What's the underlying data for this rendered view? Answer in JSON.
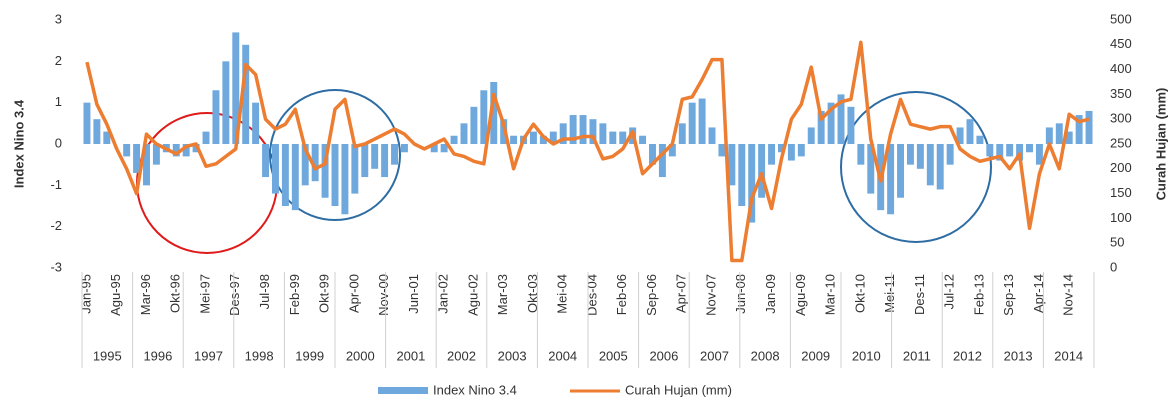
{
  "chart_data": {
    "type": "bar-line",
    "y_label": "Index Nino 3.4",
    "y2_label": "Curah Hujan (mm)",
    "categories": [
      "Jan-95",
      null,
      null,
      "Agu-95",
      null,
      null,
      "Mar-96",
      null,
      null,
      "Okt-96",
      null,
      null,
      "Mei-97",
      null,
      null,
      "Des-97",
      null,
      null,
      "Jul-98",
      null,
      null,
      "Feb-99",
      null,
      null,
      "Okt-99",
      null,
      null,
      "Apr-00",
      null,
      null,
      "Nov-00",
      null,
      null,
      "Jun-01",
      null,
      null,
      "Jan-02",
      null,
      null,
      "Agu-02",
      null,
      null,
      "Mar-03",
      null,
      null,
      "Okt-03",
      null,
      null,
      "Mei-04",
      null,
      null,
      "Des-04",
      null,
      null,
      "Feb-06",
      null,
      null,
      "Sep-06",
      null,
      null,
      "Apr-07",
      null,
      null,
      "Nov-07",
      null,
      null,
      "Jun-08",
      null,
      null,
      "Jan-09",
      null,
      null,
      "Agu-09",
      null,
      null,
      "Mar-10",
      null,
      null,
      "Okt-10",
      null,
      null,
      "Mei-11",
      null,
      null,
      "Des-11",
      null,
      null,
      "Jul-12",
      null,
      null,
      "Feb-13",
      null,
      null,
      "Sep-13",
      null,
      null,
      "Apr-14",
      null,
      null,
      "Nov-14",
      null,
      null
    ],
    "year_labels": [
      "1995",
      "1996",
      "1997",
      "1998",
      "1999",
      "2000",
      "2001",
      "2002",
      "2003",
      "2004",
      "2005",
      "2006",
      "2007",
      "2008",
      "2009",
      "2010",
      "2011",
      "2012",
      "2013",
      "2014"
    ],
    "series": [
      {
        "name": "Index Nino 3.4",
        "type": "bar",
        "color": "#6fa8dc",
        "values": [
          1.0,
          0.6,
          0.3,
          0,
          -0.3,
          -0.7,
          -1.0,
          -0.5,
          -0.2,
          -0.3,
          -0.3,
          -0.2,
          0.3,
          1.3,
          2.0,
          2.7,
          2.4,
          1.0,
          -0.8,
          -1.2,
          -1.5,
          -1.6,
          -1.0,
          -0.9,
          -1.3,
          -1.5,
          -1.7,
          -1.2,
          -0.8,
          -0.6,
          -0.8,
          -0.5,
          -0.2,
          0,
          0,
          -0.2,
          -0.2,
          0.2,
          0.5,
          0.9,
          1.3,
          1.5,
          0.6,
          0.2,
          0.2,
          0.3,
          0.2,
          0.3,
          0.5,
          0.7,
          0.7,
          0.6,
          0.5,
          0.3,
          0.3,
          0.4,
          0.2,
          -0.5,
          -0.8,
          -0.3,
          0.5,
          1.0,
          1.1,
          0.4,
          -0.3,
          -1.0,
          -1.5,
          -1.9,
          -1.3,
          -0.5,
          -0.2,
          -0.4,
          -0.3,
          0.4,
          0.8,
          1.0,
          1.2,
          0.9,
          -0.5,
          -1.2,
          -1.6,
          -1.7,
          -1.3,
          -0.5,
          -0.6,
          -1.0,
          -1.1,
          -0.5,
          0.4,
          0.6,
          0.2,
          -0.3,
          -0.4,
          -0.3,
          -0.4,
          -0.2,
          -0.5,
          0.4,
          0.5,
          0.3,
          0.7,
          0.8
        ]
      },
      {
        "name": "Curah Hujan (mm)",
        "type": "line",
        "axis": "y2",
        "color": "#ed7d31",
        "values": [
          415,
          330,
          290,
          240,
          200,
          150,
          270,
          250,
          240,
          230,
          245,
          250,
          205,
          210,
          225,
          240,
          410,
          390,
          300,
          280,
          290,
          320,
          240,
          200,
          210,
          320,
          340,
          245,
          250,
          260,
          270,
          280,
          270,
          250,
          240,
          250,
          260,
          230,
          225,
          215,
          210,
          350,
          290,
          200,
          260,
          290,
          265,
          250,
          260,
          260,
          265,
          265,
          220,
          225,
          240,
          275,
          190,
          210,
          230,
          250,
          340,
          345,
          380,
          420,
          420,
          15,
          15,
          140,
          190,
          120,
          220,
          300,
          330,
          405,
          300,
          320,
          335,
          340,
          455,
          260,
          175,
          270,
          340,
          290,
          285,
          280,
          285,
          285,
          240,
          225,
          215,
          220,
          225,
          200,
          230,
          80,
          190,
          250,
          200,
          310,
          295,
          300
        ]
      }
    ],
    "ylim": [
      -3,
      3
    ],
    "yticks": [
      -3,
      -2,
      -1,
      0,
      1,
      2,
      3
    ],
    "y2lim": [
      0,
      500
    ],
    "y2ticks": [
      0,
      50,
      100,
      150,
      200,
      250,
      300,
      350,
      400,
      450,
      500
    ]
  }
}
